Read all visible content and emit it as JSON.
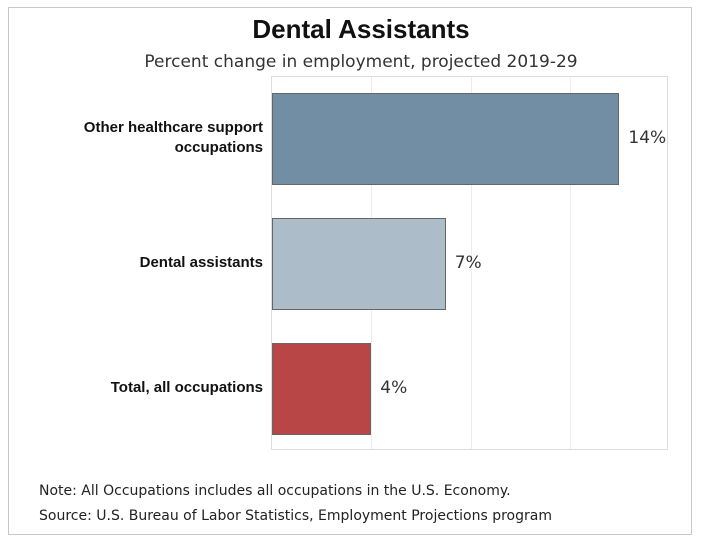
{
  "chart_data": {
    "type": "bar",
    "orientation": "horizontal",
    "title": "Dental Assistants",
    "subtitle": "Percent change in employment, projected 2019-29",
    "categories": [
      "Other healthcare support occupations",
      "Dental assistants",
      "Total, all occupations"
    ],
    "category_lines": [
      [
        "Other healthcare support",
        "occupations"
      ],
      [
        "Dental assistants"
      ],
      [
        "Total, all occupations"
      ]
    ],
    "values": [
      14,
      7,
      4
    ],
    "value_labels": [
      "14%",
      "7%",
      "4%"
    ],
    "colors": [
      "#718ea5",
      "#acbdc9",
      "#b94646"
    ],
    "xlim": [
      0,
      16
    ],
    "grid": true,
    "legend": "none"
  },
  "notes": {
    "note": "Note: All Occupations includes all occupations in the U.S. Economy.",
    "source": "Source: U.S. Bureau of Labor Statistics, Employment Projections program"
  }
}
